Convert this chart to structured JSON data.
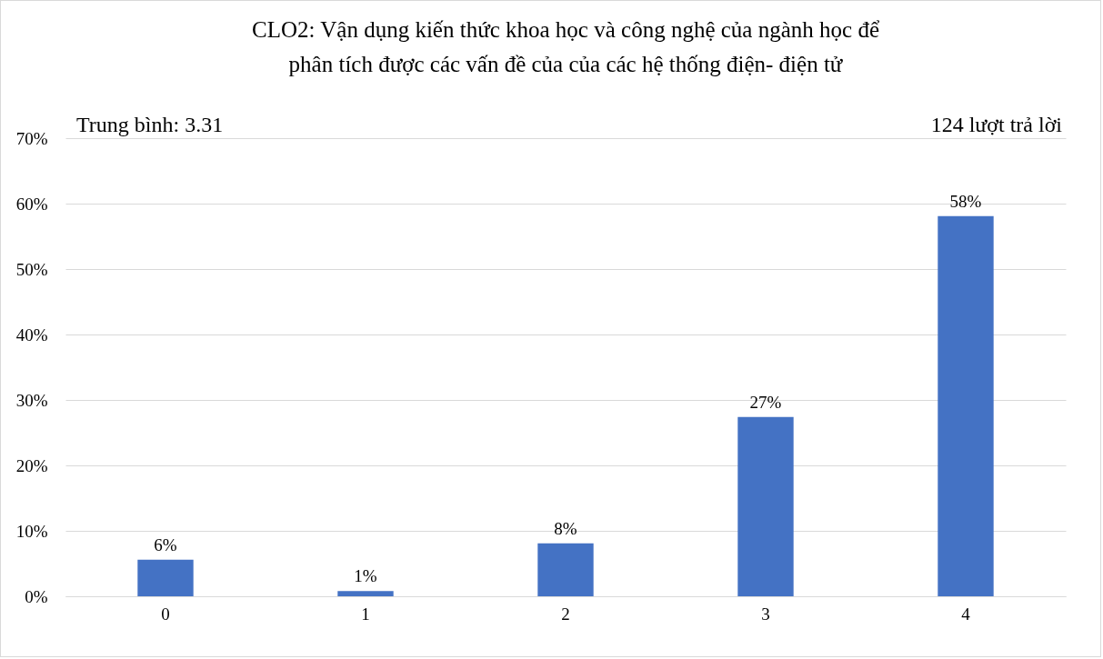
{
  "chart_data": {
    "type": "bar",
    "title": "CLO2: Vận dụng kiến thức khoa học và công nghệ của ngành học để\nphân tích được các vấn đề của của các hệ thống điện- điện tử",
    "annotations": [
      "Trung bình: 3.31",
      "124 lượt trả lời"
    ],
    "categories": [
      "0",
      "1",
      "2",
      "3",
      "4"
    ],
    "values": [
      5.6,
      0.8,
      8.1,
      27.4,
      58.1
    ],
    "value_labels": [
      "6%",
      "1%",
      "8%",
      "27%",
      "58%"
    ],
    "color": "#4472c4",
    "ylim": [
      0,
      70
    ],
    "yticks": [
      {
        "value": 0,
        "label": "0%"
      },
      {
        "value": 10,
        "label": "10%"
      },
      {
        "value": 20,
        "label": "20%"
      },
      {
        "value": 30,
        "label": "30%"
      },
      {
        "value": 40,
        "label": "40%"
      },
      {
        "value": 50,
        "label": "50%"
      },
      {
        "value": 60,
        "label": "60%"
      },
      {
        "value": 70,
        "label": "70%"
      }
    ],
    "grid": "y"
  }
}
